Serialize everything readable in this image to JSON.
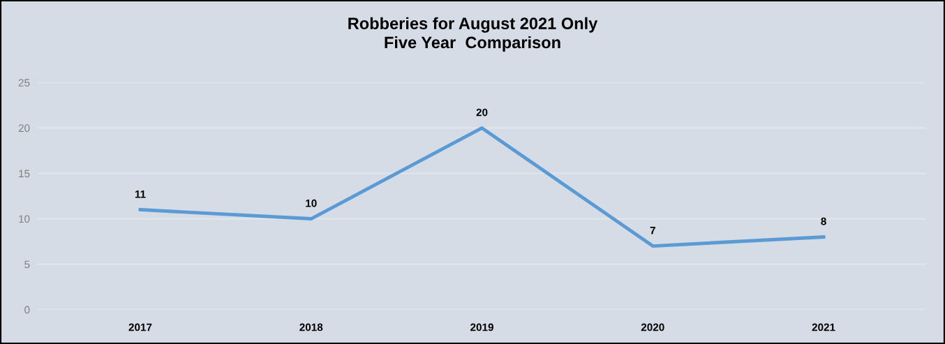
{
  "chart_data": {
    "type": "line",
    "title": "Robberies for August 2021 Only\nFive Year  Comparison",
    "categories": [
      "2017",
      "2018",
      "2019",
      "2020",
      "2021"
    ],
    "series": [
      {
        "color": "#5b9bd5",
        "values": [
          11,
          10,
          20,
          7,
          8
        ]
      }
    ],
    "ylim": [
      0,
      25
    ],
    "yticks": [
      0,
      5,
      10,
      15,
      20,
      25
    ],
    "grid": "y",
    "data_labels": true,
    "marker": "none",
    "line_style": "solid"
  }
}
